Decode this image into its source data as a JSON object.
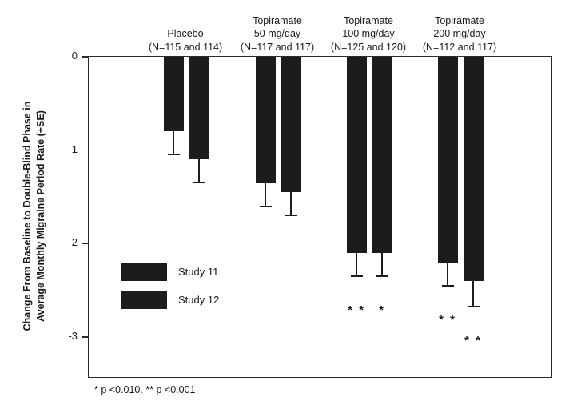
{
  "y_axis": {
    "label_line1": "Change From Baseline to Double-Blind Phase in",
    "label_line2": "Average Monthly Migraine Period Rate (+SE)",
    "tick_labels": [
      "0",
      "-1",
      "-2",
      "-3"
    ]
  },
  "footnote": "* p <0.010. ** p <0.001",
  "chart_data": {
    "type": "bar",
    "orientation": "vertical",
    "bar_color": "#1c1c1c",
    "ylabel": "Change From Baseline to Double-Blind Phase in Average Monthly Migraine Period Rate (+SE)",
    "ylim": [
      0,
      -3.45
    ],
    "yticks": [
      0,
      -1,
      -2,
      -3
    ],
    "grid": false,
    "legend_position": "inside-lower-left",
    "error_bars": "SE, downward with cap",
    "groups": [
      {
        "label_lines": [
          "Placebo",
          "(N=115 and 114)"
        ]
      },
      {
        "label_lines": [
          "Topiramate",
          "50 mg/day",
          "(N=117 and 117)"
        ]
      },
      {
        "label_lines": [
          "Topiramate",
          "100 mg/day",
          "(N=125 and 120)"
        ]
      },
      {
        "label_lines": [
          "Topiramate",
          "200 mg/day",
          "(N=112 and 117)"
        ]
      }
    ],
    "series": [
      {
        "name": "Study 11",
        "values": [
          -0.8,
          -1.35,
          -2.1,
          -2.2
        ],
        "se": [
          0.25,
          0.25,
          0.25,
          0.25
        ],
        "significance": [
          "",
          "",
          "* *",
          "* *"
        ]
      },
      {
        "name": "Study 12",
        "values": [
          -1.1,
          -1.45,
          -2.1,
          -2.4
        ],
        "se": [
          0.25,
          0.25,
          0.25,
          0.27
        ],
        "significance": [
          "",
          "",
          "*",
          "* *"
        ]
      }
    ],
    "significance_note": "* p <0.010. ** p <0.001"
  }
}
